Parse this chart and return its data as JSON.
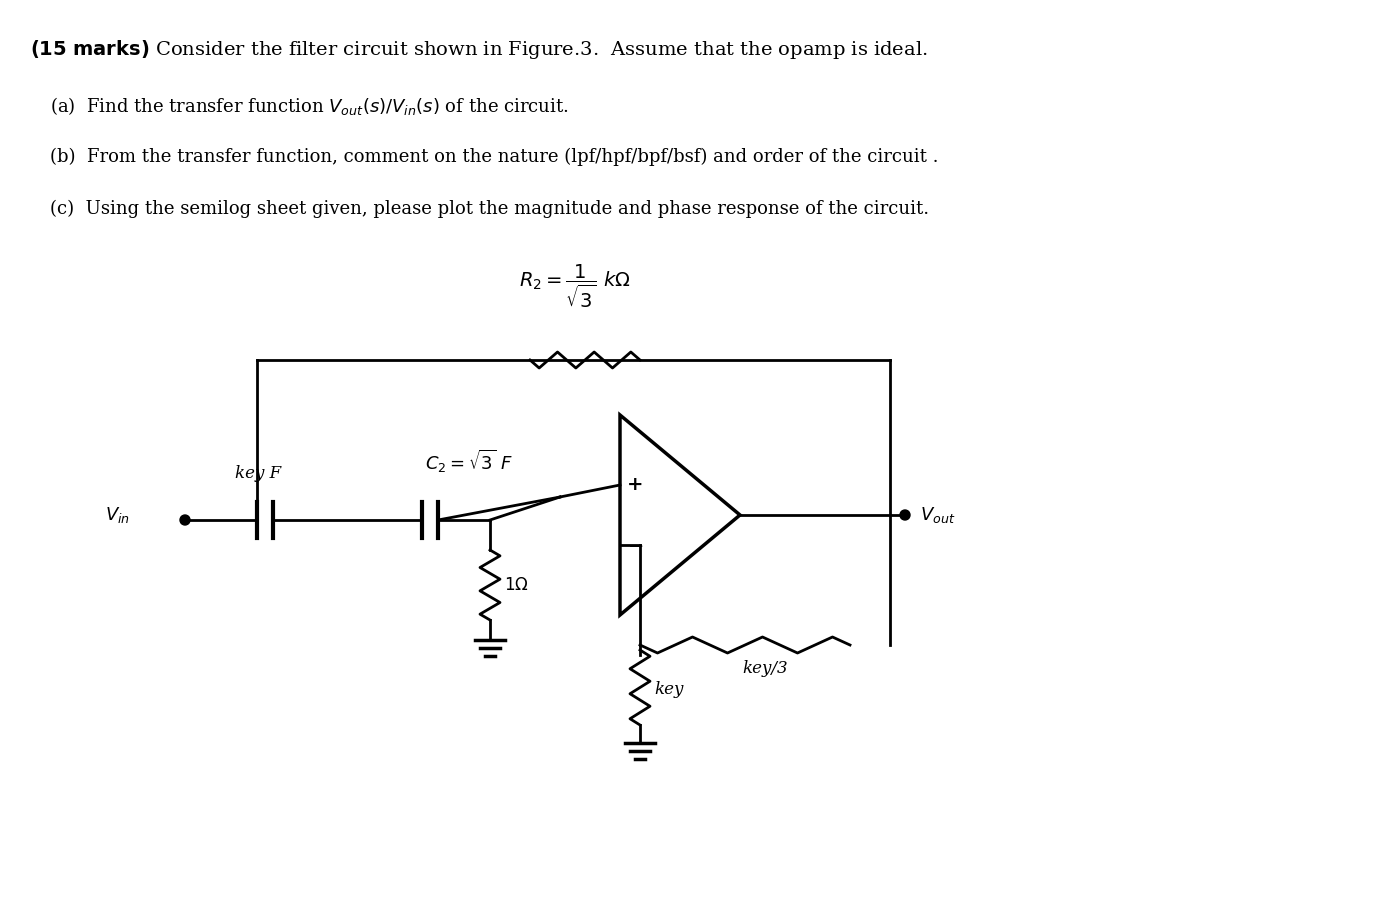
{
  "bg_color": "#ffffff",
  "title_text": "(15 marks) Consider the filter circuit shown in Figure.3.  Assume that the opamp is ideal.",
  "part_a": "(a)  Find the transfer function $V_{out}(s)/V_{in}(s)$ of the circuit.",
  "part_b": "(b)  From the transfer function, comment on the nature (lpf/hpf/bpf/bsf) and order of the circuit .",
  "part_c": "(c)  Using the semilog sheet given, please plot the magnitude and phase response of the circuit.",
  "fig_width": 13.9,
  "fig_height": 9.14
}
